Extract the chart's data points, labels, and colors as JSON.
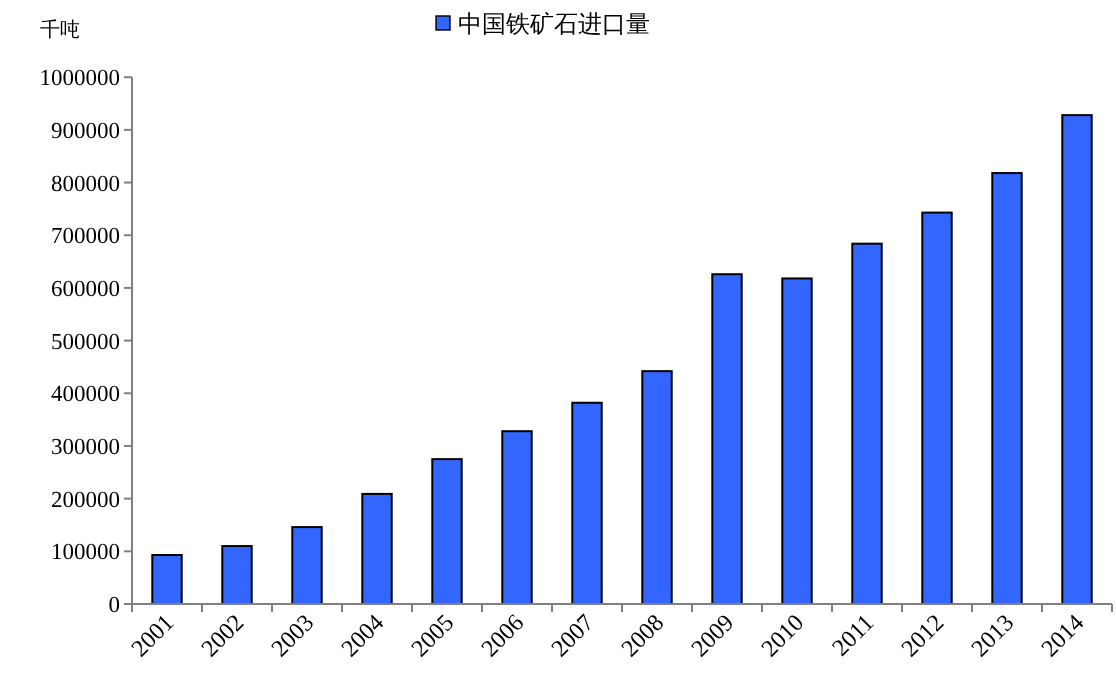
{
  "chart_data": {
    "type": "bar",
    "ylabel": "千吨",
    "categories": [
      "2001",
      "2002",
      "2003",
      "2004",
      "2005",
      "2006",
      "2007",
      "2008",
      "2009",
      "2010",
      "2011",
      "2012",
      "2013",
      "2014"
    ],
    "series": [
      {
        "name": "中国铁矿石进口量",
        "color": "#3366ff",
        "values": [
          93000,
          110000,
          146000,
          209000,
          275000,
          328000,
          382000,
          442000,
          626000,
          618000,
          684000,
          743000,
          818000,
          928000
        ]
      }
    ],
    "ylim": [
      0,
      1000000
    ],
    "yticks": [
      0,
      100000,
      200000,
      300000,
      400000,
      500000,
      600000,
      700000,
      800000,
      900000,
      1000000
    ],
    "legend": "top",
    "grid": false
  }
}
